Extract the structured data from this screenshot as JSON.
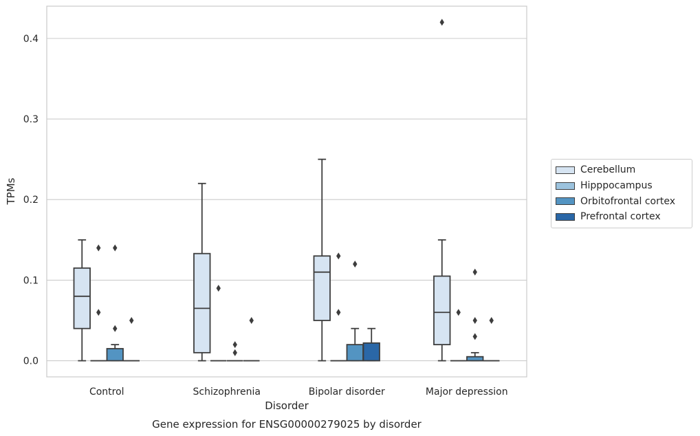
{
  "chart_data": {
    "type": "box",
    "title": "Gene expression for ENSG00000279025 by disorder",
    "xlabel": "Disorder",
    "ylabel": "TPMs",
    "ylim": [
      -0.02,
      0.44
    ],
    "yticks": [
      0.0,
      0.1,
      0.2,
      0.3,
      0.4
    ],
    "ytick_labels": [
      "0.0",
      "0.1",
      "0.2",
      "0.3",
      "0.4"
    ],
    "grid": true,
    "legend_position": "right",
    "categories": [
      "Control",
      "Schizophrenia",
      "Bipolar disorder",
      "Major depression"
    ],
    "series": [
      {
        "name": "Cerebellum",
        "color": "#d6e4f2",
        "boxes": [
          {
            "whislo": 0.0,
            "q1": 0.04,
            "med": 0.08,
            "q3": 0.115,
            "whishi": 0.15,
            "fliers": []
          },
          {
            "whislo": 0.0,
            "q1": 0.01,
            "med": 0.065,
            "q3": 0.133,
            "whishi": 0.22,
            "fliers": []
          },
          {
            "whislo": 0.0,
            "q1": 0.05,
            "med": 0.11,
            "q3": 0.13,
            "whishi": 0.25,
            "fliers": []
          },
          {
            "whislo": 0.0,
            "q1": 0.02,
            "med": 0.06,
            "q3": 0.105,
            "whishi": 0.15,
            "fliers": [
              0.42
            ]
          }
        ]
      },
      {
        "name": "Hipppocampus",
        "color": "#9cc3de",
        "boxes": [
          {
            "whislo": 0.0,
            "q1": 0.0,
            "med": 0.0,
            "q3": 0.0,
            "whishi": 0.0,
            "fliers": [
              0.14,
              0.06
            ]
          },
          {
            "whislo": 0.0,
            "q1": 0.0,
            "med": 0.0,
            "q3": 0.0,
            "whishi": 0.0,
            "fliers": [
              0.09
            ]
          },
          {
            "whislo": 0.0,
            "q1": 0.0,
            "med": 0.0,
            "q3": 0.0,
            "whishi": 0.0,
            "fliers": [
              0.13,
              0.06
            ]
          },
          {
            "whislo": 0.0,
            "q1": 0.0,
            "med": 0.0,
            "q3": 0.0,
            "whishi": 0.0,
            "fliers": [
              0.06
            ]
          }
        ]
      },
      {
        "name": "Orbitofrontal cortex",
        "color": "#5394c2",
        "boxes": [
          {
            "whislo": 0.0,
            "q1": 0.0,
            "med": 0.0,
            "q3": 0.015,
            "whishi": 0.02,
            "fliers": [
              0.14,
              0.04
            ]
          },
          {
            "whislo": 0.0,
            "q1": 0.0,
            "med": 0.0,
            "q3": 0.0,
            "whishi": 0.0,
            "fliers": [
              0.02,
              0.01
            ]
          },
          {
            "whislo": 0.0,
            "q1": 0.0,
            "med": 0.0,
            "q3": 0.02,
            "whishi": 0.04,
            "fliers": [
              0.12
            ]
          },
          {
            "whislo": 0.0,
            "q1": 0.0,
            "med": 0.0,
            "q3": 0.005,
            "whishi": 0.01,
            "fliers": [
              0.11,
              0.05,
              0.03
            ]
          }
        ]
      },
      {
        "name": "Prefrontal cortex",
        "color": "#2a67a7",
        "boxes": [
          {
            "whislo": 0.0,
            "q1": 0.0,
            "med": 0.0,
            "q3": 0.0,
            "whishi": 0.0,
            "fliers": [
              0.05
            ]
          },
          {
            "whislo": 0.0,
            "q1": 0.0,
            "med": 0.0,
            "q3": 0.0,
            "whishi": 0.0,
            "fliers": [
              0.05
            ]
          },
          {
            "whislo": 0.0,
            "q1": 0.0,
            "med": 0.0,
            "q3": 0.022,
            "whishi": 0.04,
            "fliers": []
          },
          {
            "whislo": 0.0,
            "q1": 0.0,
            "med": 0.0,
            "q3": 0.0,
            "whishi": 0.0,
            "fliers": [
              0.05
            ]
          }
        ]
      }
    ]
  }
}
